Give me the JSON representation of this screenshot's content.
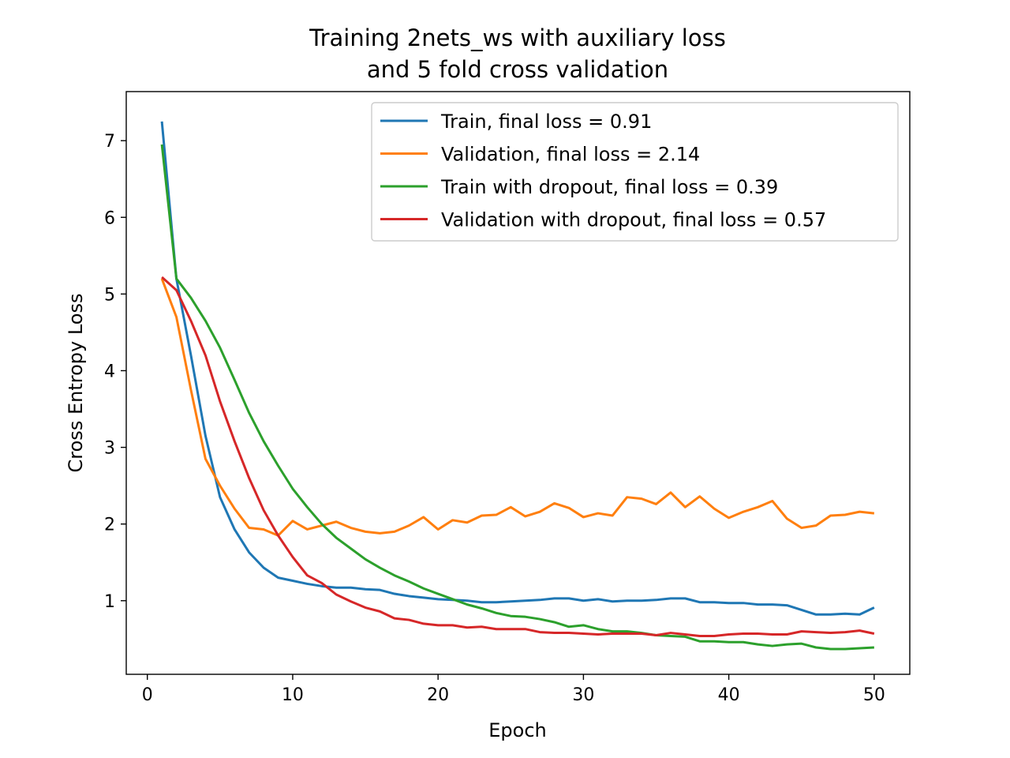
{
  "chart_data": {
    "type": "line",
    "title": [
      "Training 2nets_ws with auxiliary loss",
      "and 5 fold cross validation"
    ],
    "xlabel": "Epoch",
    "ylabel": "Cross Entropy Loss",
    "xlim": [
      -1.45,
      52.45
    ],
    "ylim": [
      0.04,
      7.64
    ],
    "xticks": [
      0,
      10,
      20,
      30,
      40,
      50
    ],
    "yticks": [
      1,
      2,
      3,
      4,
      5,
      6,
      7
    ],
    "grid": false,
    "legend_position": "top-right",
    "x": [
      1,
      2,
      3,
      4,
      5,
      6,
      7,
      8,
      9,
      10,
      11,
      12,
      13,
      14,
      15,
      16,
      17,
      18,
      19,
      20,
      21,
      22,
      23,
      24,
      25,
      26,
      27,
      28,
      29,
      30,
      31,
      32,
      33,
      34,
      35,
      36,
      37,
      38,
      39,
      40,
      41,
      42,
      43,
      44,
      45,
      46,
      47,
      48,
      49,
      50
    ],
    "series": [
      {
        "name": "Train, final loss = 0.91",
        "color": "#1f77b4",
        "values": [
          7.25,
          5.2,
          4.2,
          3.15,
          2.35,
          1.93,
          1.63,
          1.43,
          1.3,
          1.26,
          1.22,
          1.19,
          1.17,
          1.17,
          1.15,
          1.14,
          1.09,
          1.06,
          1.04,
          1.02,
          1.01,
          1.0,
          0.98,
          0.98,
          0.99,
          1.0,
          1.01,
          1.03,
          1.03,
          1.0,
          1.02,
          0.99,
          1.0,
          1.0,
          1.01,
          1.03,
          1.03,
          0.98,
          0.98,
          0.97,
          0.97,
          0.95,
          0.95,
          0.94,
          0.88,
          0.82,
          0.82,
          0.83,
          0.82,
          0.91
        ]
      },
      {
        "name": "Validation, final loss = 2.14",
        "color": "#ff7f0e",
        "values": [
          5.2,
          4.7,
          3.75,
          2.85,
          2.5,
          2.2,
          1.95,
          1.93,
          1.85,
          2.04,
          1.93,
          1.98,
          2.03,
          1.95,
          1.9,
          1.88,
          1.9,
          1.98,
          2.09,
          1.93,
          2.05,
          2.02,
          2.11,
          2.12,
          2.22,
          2.1,
          2.16,
          2.27,
          2.21,
          2.09,
          2.14,
          2.11,
          2.35,
          2.33,
          2.26,
          2.41,
          2.22,
          2.36,
          2.2,
          2.08,
          2.16,
          2.22,
          2.3,
          2.07,
          1.95,
          1.98,
          2.11,
          2.12,
          2.16,
          2.14
        ]
      },
      {
        "name": "Train with dropout, final loss = 0.39",
        "color": "#2ca02c",
        "values": [
          6.95,
          5.2,
          4.95,
          4.65,
          4.3,
          3.88,
          3.45,
          3.08,
          2.76,
          2.46,
          2.22,
          2.0,
          1.82,
          1.68,
          1.54,
          1.43,
          1.33,
          1.25,
          1.16,
          1.09,
          1.02,
          0.95,
          0.9,
          0.84,
          0.8,
          0.79,
          0.76,
          0.72,
          0.66,
          0.68,
          0.63,
          0.6,
          0.6,
          0.58,
          0.55,
          0.54,
          0.53,
          0.47,
          0.47,
          0.46,
          0.46,
          0.43,
          0.41,
          0.43,
          0.44,
          0.39,
          0.37,
          0.37,
          0.38,
          0.39
        ]
      },
      {
        "name": "Validation with dropout, final loss = 0.57",
        "color": "#d62728",
        "values": [
          5.22,
          5.05,
          4.65,
          4.2,
          3.6,
          3.08,
          2.6,
          2.18,
          1.85,
          1.57,
          1.33,
          1.23,
          1.08,
          0.99,
          0.91,
          0.86,
          0.77,
          0.75,
          0.7,
          0.68,
          0.68,
          0.65,
          0.66,
          0.63,
          0.63,
          0.63,
          0.59,
          0.58,
          0.58,
          0.57,
          0.56,
          0.57,
          0.57,
          0.57,
          0.55,
          0.58,
          0.56,
          0.54,
          0.54,
          0.56,
          0.57,
          0.57,
          0.56,
          0.56,
          0.6,
          0.59,
          0.58,
          0.59,
          0.61,
          0.57
        ]
      }
    ]
  }
}
